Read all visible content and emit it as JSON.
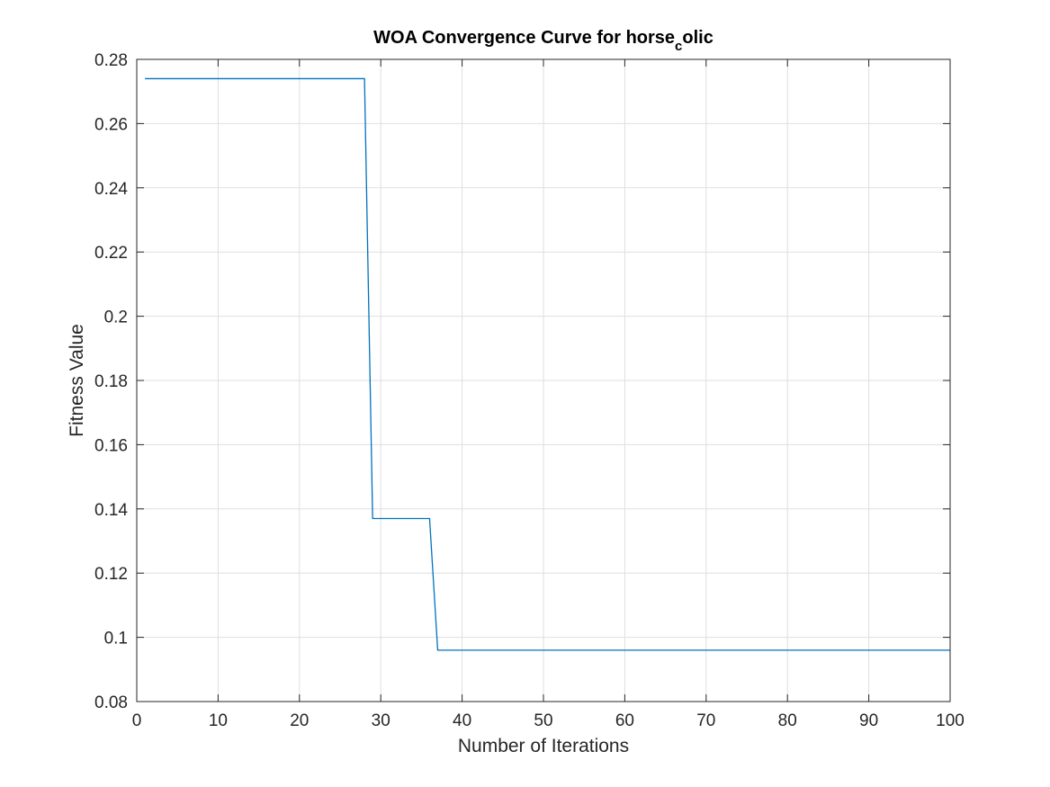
{
  "chart_data": {
    "type": "line",
    "title": {
      "main": "WOA Convergence Curve for horse",
      "subscript": "c",
      "suffix": "olic"
    },
    "xlabel": "Number of Iterations",
    "ylabel": "Fitness Value",
    "xlim": [
      0,
      100
    ],
    "ylim": [
      0.08,
      0.28
    ],
    "x_ticks": [
      0,
      10,
      20,
      30,
      40,
      50,
      60,
      70,
      80,
      90,
      100
    ],
    "x_tick_labels": [
      "0",
      "10",
      "20",
      "30",
      "40",
      "50",
      "60",
      "70",
      "80",
      "90",
      "100"
    ],
    "y_ticks": [
      0.08,
      0.1,
      0.12,
      0.14,
      0.16,
      0.18,
      0.2,
      0.22,
      0.24,
      0.26,
      0.28
    ],
    "y_tick_labels": [
      "0.08",
      "0.1",
      "0.12",
      "0.14",
      "0.16",
      "0.18",
      "0.2",
      "0.22",
      "0.24",
      "0.26",
      "0.28"
    ],
    "grid": true,
    "line_color": "#0072BD",
    "series": [
      {
        "x": [
          1,
          28,
          29,
          36,
          37,
          100
        ],
        "y": [
          0.274,
          0.274,
          0.137,
          0.137,
          0.096,
          0.096
        ]
      }
    ]
  }
}
